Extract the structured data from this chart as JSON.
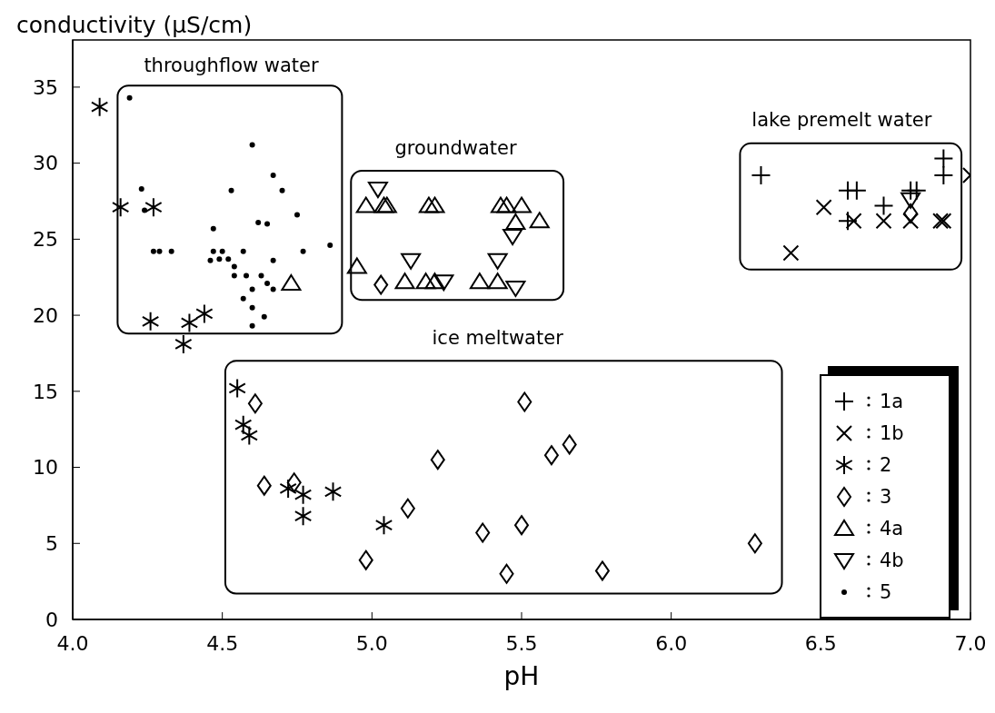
{
  "chart_data": {
    "type": "scatter",
    "ylabel": "conductivity (µS/cm)",
    "xlabel": "pH",
    "xlim": [
      4.0,
      7.0
    ],
    "ylim": [
      0,
      38.1
    ],
    "xticks": [
      {
        "value": 4,
        "label": "4.0"
      },
      {
        "value": 4.5,
        "label": "4.5"
      },
      {
        "value": 5,
        "label": "5.0"
      },
      {
        "value": 5.5,
        "label": "5.5"
      },
      {
        "value": 6,
        "label": "6.0"
      },
      {
        "value": 6.5,
        "label": "6.5"
      },
      {
        "value": 7,
        "label": "7.0"
      }
    ],
    "yticks": [
      0,
      5,
      10,
      15,
      20,
      25,
      30,
      35
    ],
    "grid": false,
    "legend": "bottom right",
    "annotations": [
      "throughflow water",
      "groundwater",
      "lake premelt water",
      "ice meltwater"
    ],
    "series": [
      {
        "name": "1a",
        "color": "#000000",
        "marker": "plus",
        "x": [
          6.3,
          6.59,
          6.62,
          6.71,
          6.91,
          6.91,
          6.59,
          6.8,
          6.82
        ],
        "values": [
          29.2,
          28.2,
          28.2,
          27.2,
          30.3,
          29.2,
          26.2,
          28.2,
          28.2
        ]
      },
      {
        "name": "1b",
        "color": "#000000",
        "marker": "cross",
        "x": [
          6.4,
          6.51,
          6.61,
          6.71,
          6.8,
          6.9,
          6.91,
          7.0
        ],
        "values": [
          24.1,
          27.1,
          26.2,
          26.2,
          26.2,
          26.2,
          26.2,
          29.2
        ]
      },
      {
        "name": "2",
        "color": "#000000",
        "x": [
          4.09,
          4.16,
          4.27,
          4.26,
          4.39,
          4.44,
          4.37,
          4.55,
          4.57,
          4.59,
          4.72,
          4.77,
          4.77,
          4.87,
          5.04
        ],
        "values": [
          33.7,
          27.1,
          27.1,
          19.6,
          19.5,
          20.1,
          18.1,
          15.2,
          12.8,
          12.1,
          8.6,
          8.2,
          6.8,
          8.4,
          6.2
        ]
      },
      {
        "name": "3",
        "color": "#000000",
        "marker": "diamond",
        "x": [
          4.61,
          4.64,
          4.74,
          4.98,
          5.12,
          5.22,
          5.37,
          5.51,
          5.6,
          5.66,
          5.5,
          5.45,
          5.77,
          6.28,
          5.03,
          6.8
        ],
        "values": [
          14.2,
          8.8,
          9.0,
          3.9,
          7.3,
          10.5,
          5.7,
          14.3,
          10.8,
          11.5,
          6.2,
          3.0,
          3.2,
          5.0,
          22.0,
          26.7
        ]
      },
      {
        "name": "4a",
        "color": "#000000",
        "marker": "triangle",
        "x": [
          4.73,
          4.98,
          5.04,
          5.05,
          5.19,
          5.21,
          5.43,
          5.45,
          5.5,
          5.48,
          5.56,
          4.95,
          5.11,
          5.18,
          5.21,
          5.36,
          5.42
        ],
        "values": [
          22.1,
          27.2,
          27.2,
          27.2,
          27.2,
          27.2,
          27.2,
          27.2,
          27.2,
          26.1,
          26.2,
          23.2,
          22.2,
          22.2,
          22.2,
          22.2,
          22.2
        ]
      },
      {
        "name": "4b",
        "color": "#000000",
        "marker": "triangle-down",
        "x": [
          5.02,
          5.13,
          5.24,
          5.42,
          5.47,
          5.48,
          6.8
        ],
        "values": [
          28.3,
          23.6,
          22.2,
          23.6,
          25.2,
          21.8,
          27.6
        ]
      },
      {
        "name": "5",
        "color": "#000000",
        "marker": "circle",
        "x": [
          4.19,
          4.6,
          4.67,
          4.7,
          4.23,
          4.53,
          4.75,
          4.24,
          4.62,
          4.65,
          4.47,
          4.86,
          4.77,
          4.27,
          4.29,
          4.33,
          4.47,
          4.5,
          4.57,
          4.46,
          4.49,
          4.52,
          4.67,
          4.54,
          4.54,
          4.58,
          4.63,
          4.65,
          4.67,
          4.6,
          4.57,
          4.6,
          4.64,
          4.6
        ],
        "values": [
          34.3,
          31.2,
          29.2,
          28.2,
          28.3,
          28.2,
          26.6,
          26.9,
          26.1,
          26.0,
          25.7,
          24.6,
          24.2,
          24.2,
          24.2,
          24.2,
          24.2,
          24.2,
          24.2,
          23.6,
          23.7,
          23.7,
          23.6,
          23.2,
          22.6,
          22.6,
          22.6,
          22.1,
          21.7,
          21.7,
          21.1,
          20.5,
          19.9,
          19.3
        ]
      }
    ]
  }
}
